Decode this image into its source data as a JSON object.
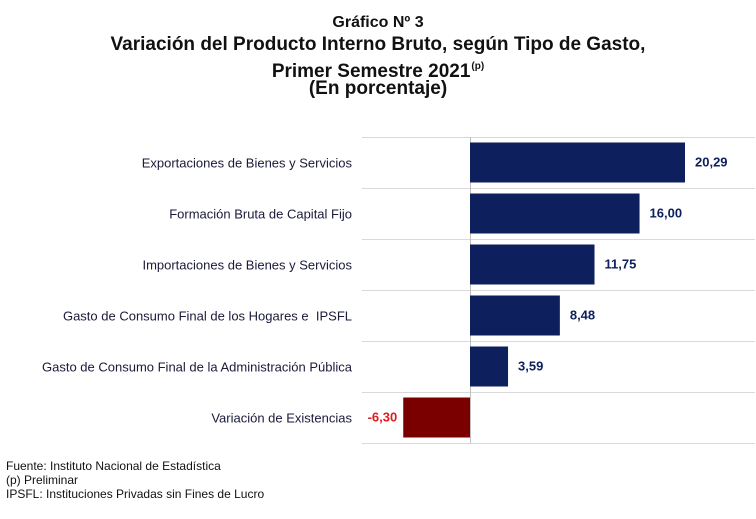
{
  "header": {
    "kicker": "Gráfico Nº 3",
    "title_line1": "Variación del Producto Interno Bruto, según Tipo de Gasto,",
    "title_line2": "Primer Semestre 2021",
    "title_sup": "(p)",
    "title_line3": "(En porcentaje)"
  },
  "chart_data": {
    "type": "bar",
    "orientation": "horizontal",
    "categories": [
      "Exportaciones de Bienes y Servicios",
      "Formación Bruta de Capital Fijo",
      "Importaciones de Bienes y Servicios",
      "Gasto de Consumo Final de los Hogares e  IPSFL",
      "Gasto de Consumo Final de la Administración Pública",
      "Variación de Existencias"
    ],
    "values": [
      20.29,
      16.0,
      11.75,
      8.48,
      3.59,
      -6.3
    ],
    "value_labels": [
      "20,29",
      "16,00",
      "11,75",
      "8,48",
      "3,59",
      "-6,30"
    ],
    "colors": {
      "positive": "#0d1f5c",
      "negative": "#7a0000",
      "negative_label": "#e0191b",
      "positive_label": "#0d1f5c",
      "gridline": "#d9d9d9"
    },
    "xlim": [
      -6.3,
      20.29
    ],
    "grid": true,
    "legend": "none"
  },
  "footer": {
    "source": "Fuente: Instituto Nacional de Estadística",
    "preliminary": "(p) Preliminar",
    "ipsfl": "IPSFL: Instituciones Privadas sin Fines de Lucro"
  }
}
